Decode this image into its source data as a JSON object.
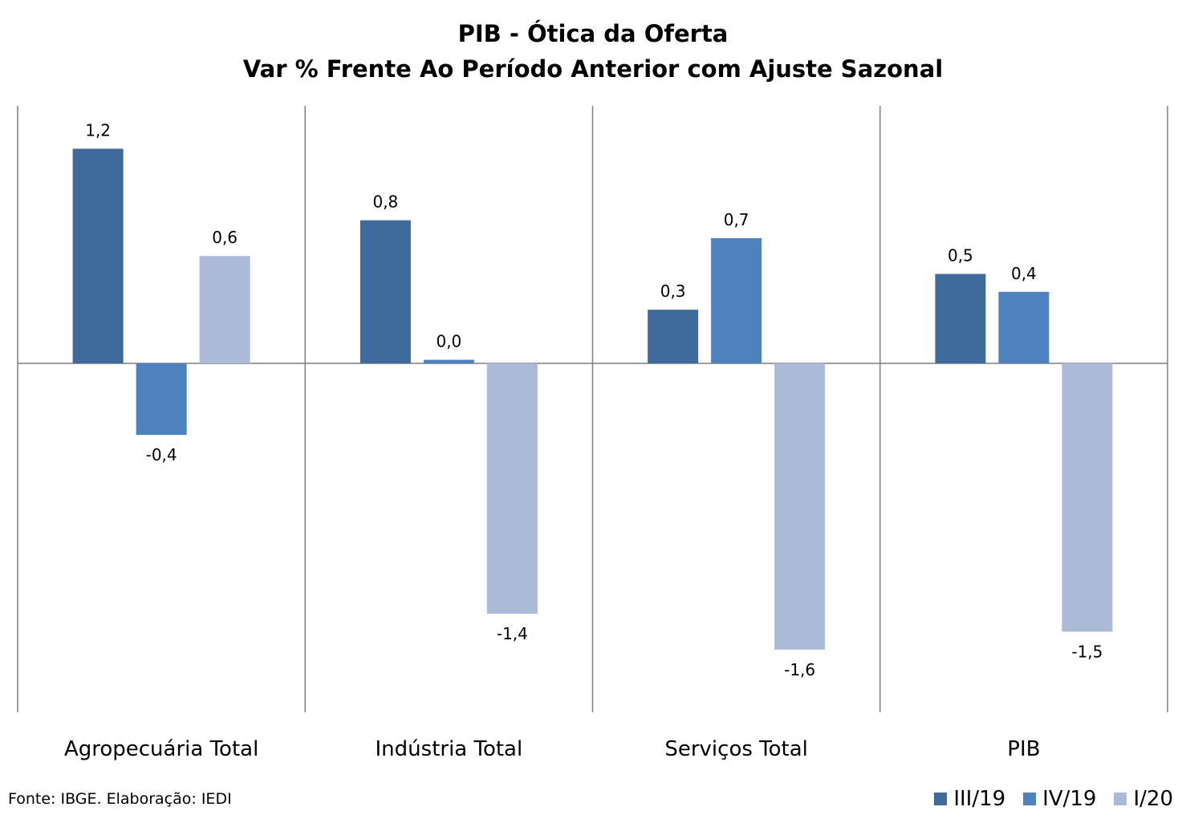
{
  "chart_data": {
    "type": "bar",
    "title": "PIB - Ótica da Oferta",
    "subtitle": "Var % Frente Ao Período Anterior com Ajuste Sazonal",
    "categories": [
      "Agropecuária Total",
      "Indústria Total",
      "Serviços Total",
      "PIB"
    ],
    "series": [
      {
        "name": "III/19",
        "color": "#3E6A9C",
        "values": [
          1.2,
          0.8,
          0.3,
          0.5
        ],
        "labels": [
          "1,2",
          "0,8",
          "0,3",
          "0,5"
        ]
      },
      {
        "name": "IV/19",
        "color": "#4F81BD",
        "values": [
          -0.4,
          0.02,
          0.7,
          0.4
        ],
        "labels": [
          "-0,4",
          "0,0",
          "0,7",
          "0,4"
        ]
      },
      {
        "name": "I/20",
        "color": "#ABBAD7",
        "values": [
          0.6,
          -1.4,
          -1.6,
          -1.5
        ],
        "labels": [
          "0,6",
          "-1,4",
          "-1,6",
          "-1,5"
        ]
      }
    ],
    "ylim": [
      -1.85,
      1.4
    ],
    "legend_position": "bottom-right",
    "grid": false
  },
  "source_text": "Fonte: IBGE. Elaboração: IEDI"
}
